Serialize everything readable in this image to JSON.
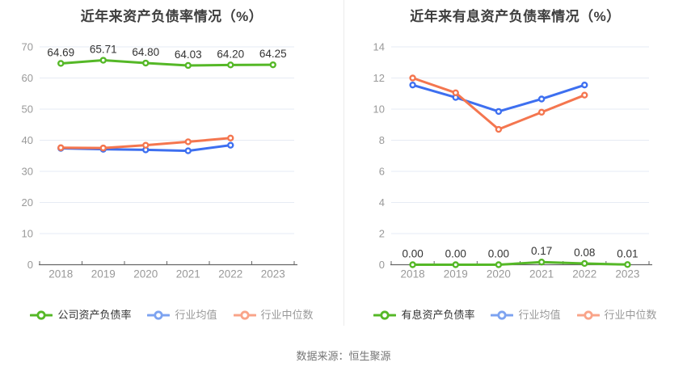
{
  "footer": {
    "source_note": "数据来源：恒生聚源"
  },
  "palette": {
    "green": "#55b827",
    "blue": "#3d6ff0",
    "orange": "#f4764f",
    "legend_blue": "#7da3f0",
    "legend_orange": "#f9a489",
    "grid_line": "#e6ebf4",
    "axis_line": "#666666",
    "tick_text": "#999999",
    "title_text": "#3e3e3e",
    "point_label_text": "#333333",
    "legend_active_text": "#333333",
    "legend_muted_text": "#999999"
  },
  "chart_data": [
    {
      "type": "line",
      "title": "近年来资产负债率情况（%）",
      "categories": [
        "2018",
        "2019",
        "2020",
        "2021",
        "2022",
        "2023"
      ],
      "y_ticks": [
        0,
        10,
        20,
        30,
        40,
        50,
        60,
        70
      ],
      "ylim": [
        0,
        70
      ],
      "grid": true,
      "legend_position": "bottom",
      "series": [
        {
          "name": "公司资产负债率",
          "color_key": "green",
          "legend_marker_key": "green",
          "legend_muted": false,
          "values": [
            64.69,
            65.71,
            64.8,
            64.03,
            64.2,
            64.25
          ],
          "point_labels": [
            "64.69",
            "65.71",
            "64.80",
            "64.03",
            "64.20",
            "64.25"
          ]
        },
        {
          "name": "行业均值",
          "color_key": "blue",
          "legend_marker_key": "legend_blue",
          "legend_muted": true,
          "values": [
            37.4,
            37.1,
            36.9,
            36.6,
            38.4,
            null
          ],
          "point_labels": null
        },
        {
          "name": "行业中位数",
          "color_key": "orange",
          "legend_marker_key": "legend_orange",
          "legend_muted": true,
          "values": [
            37.6,
            37.5,
            38.4,
            39.5,
            40.7,
            null
          ],
          "point_labels": null
        }
      ]
    },
    {
      "type": "line",
      "title": "近年来有息资产负债率情况（%）",
      "categories": [
        "2018",
        "2019",
        "2020",
        "2021",
        "2022",
        "2023"
      ],
      "y_ticks": [
        0,
        2,
        4,
        6,
        8,
        10,
        12,
        14
      ],
      "ylim": [
        0,
        14
      ],
      "grid": true,
      "legend_position": "bottom",
      "series": [
        {
          "name": "有息资产负债率",
          "color_key": "green",
          "legend_marker_key": "green",
          "legend_muted": false,
          "values": [
            0.0,
            0.0,
            0.0,
            0.17,
            0.08,
            0.01
          ],
          "point_labels": [
            "0.00",
            "0.00",
            "0.00",
            "0.17",
            "0.08",
            "0.01"
          ]
        },
        {
          "name": "行业均值",
          "color_key": "blue",
          "legend_marker_key": "legend_blue",
          "legend_muted": true,
          "values": [
            11.55,
            10.75,
            9.85,
            10.65,
            11.55,
            null
          ],
          "point_labels": null
        },
        {
          "name": "行业中位数",
          "color_key": "orange",
          "legend_marker_key": "legend_orange",
          "legend_muted": true,
          "values": [
            12.0,
            11.05,
            8.7,
            9.8,
            10.9,
            null
          ],
          "point_labels": null
        }
      ]
    }
  ]
}
